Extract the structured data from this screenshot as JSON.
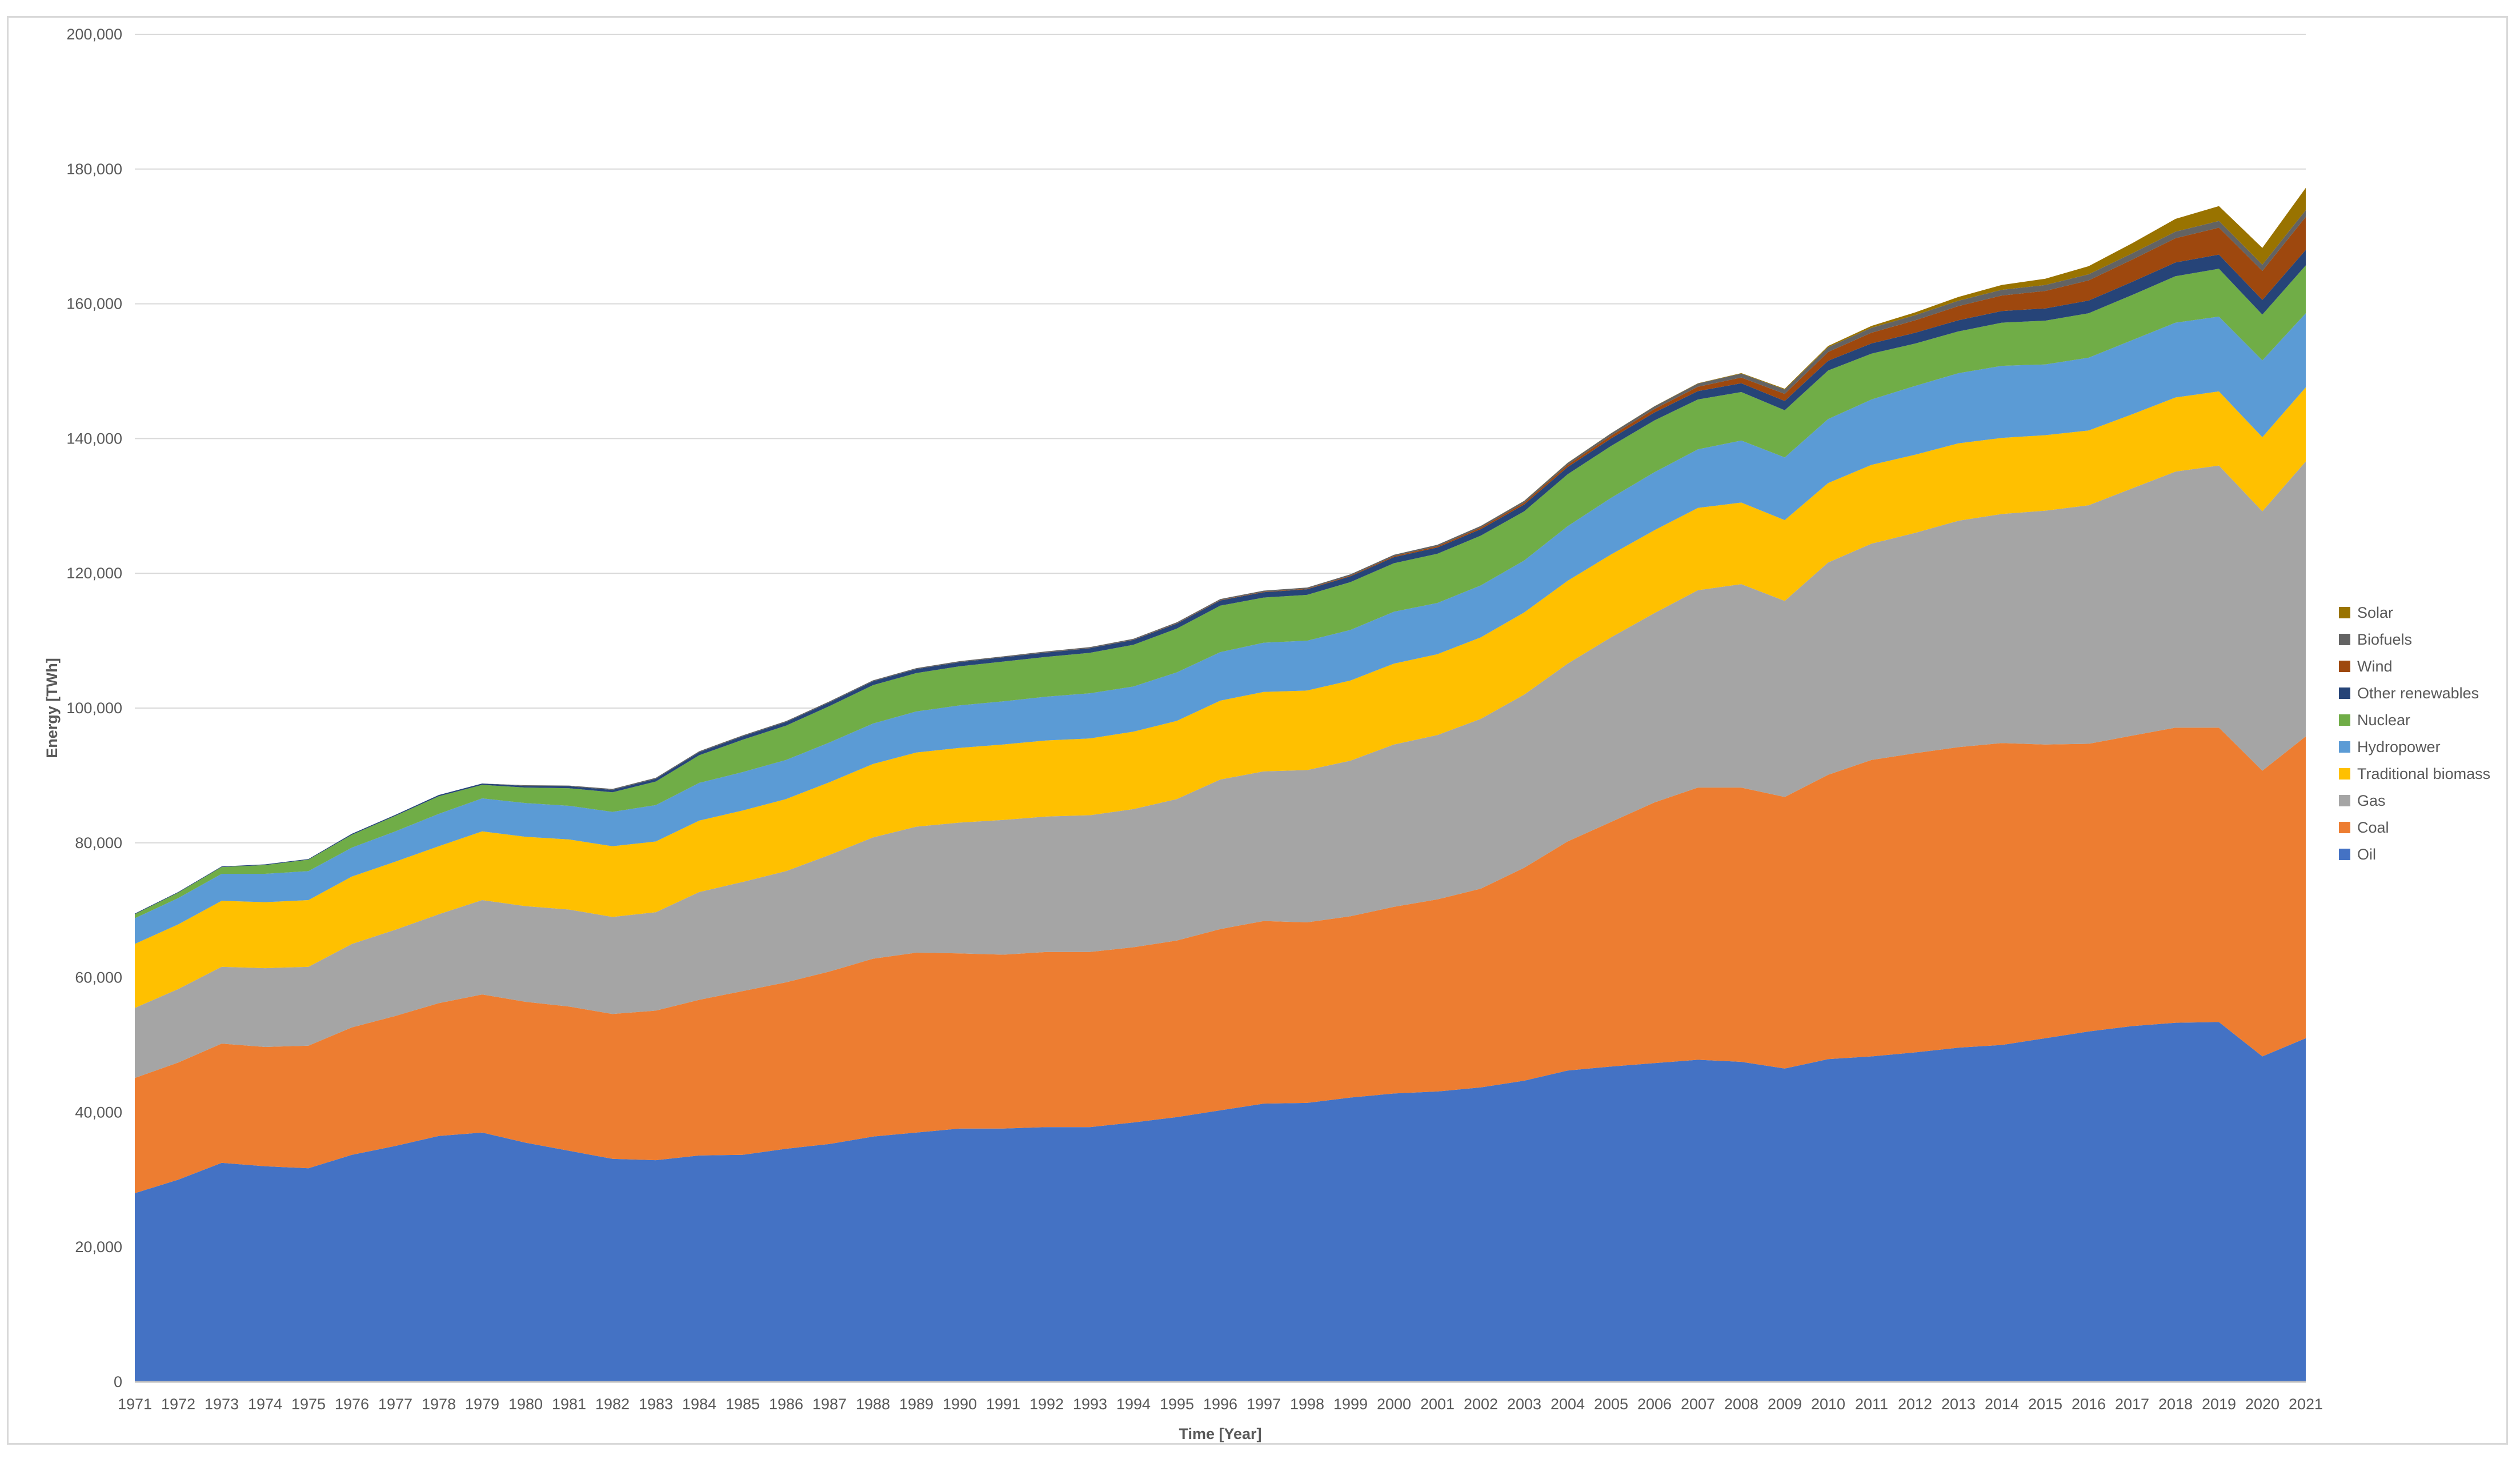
{
  "chart_data": {
    "type": "area",
    "stacked": true,
    "xlabel": "Time [Year]",
    "ylabel": "Energy [TWh]",
    "ylim": [
      0,
      200000
    ],
    "ytick_step": 20000,
    "y_tick_labels": [
      "0",
      "20,000",
      "40,000",
      "60,000",
      "80,000",
      "100,000",
      "120,000",
      "140,000",
      "160,000",
      "180,000",
      "200,000"
    ],
    "grid": "horizontal",
    "legend_position": "right",
    "x": [
      1971,
      1972,
      1973,
      1974,
      1975,
      1976,
      1977,
      1978,
      1979,
      1980,
      1981,
      1982,
      1983,
      1984,
      1985,
      1986,
      1987,
      1988,
      1989,
      1990,
      1991,
      1992,
      1993,
      1994,
      1995,
      1996,
      1997,
      1998,
      1999,
      2000,
      2001,
      2002,
      2003,
      2004,
      2005,
      2006,
      2007,
      2008,
      2009,
      2010,
      2011,
      2012,
      2013,
      2014,
      2015,
      2016,
      2017,
      2018,
      2019,
      2020,
      2021
    ],
    "x_tick_labels": [
      "1971",
      "1972",
      "1973",
      "1974",
      "1975",
      "1976",
      "1977",
      "1978",
      "1979",
      "1980",
      "1981",
      "1982",
      "1983",
      "1984",
      "1985",
      "1986",
      "1987",
      "1988",
      "1989",
      "1990",
      "1991",
      "1992",
      "1993",
      "1994",
      "1995",
      "1996",
      "1997",
      "1998",
      "1999",
      "2000",
      "2001",
      "2002",
      "2003",
      "2004",
      "2005",
      "2006",
      "2007",
      "2008",
      "2009",
      "2010",
      "2011",
      "2012",
      "2013",
      "2014",
      "2015",
      "2016",
      "2017",
      "2018",
      "2019",
      "2020",
      "2021"
    ],
    "series": [
      {
        "name": "Oil",
        "color": "#4472c4",
        "values": [
          28000,
          30000,
          32500,
          32000,
          31700,
          33700,
          35000,
          36500,
          37000,
          35500,
          34300,
          33100,
          32900,
          33600,
          33700,
          34600,
          35300,
          36400,
          37000,
          37600,
          37600,
          37800,
          37800,
          38500,
          39300,
          40300,
          41300,
          41400,
          42200,
          42800,
          43100,
          43700,
          44700,
          46200,
          46800,
          47300,
          47800,
          47500,
          46500,
          47900,
          48300,
          48900,
          49600,
          50000,
          51000,
          52000,
          52800,
          53300,
          53400,
          48300,
          51000
        ]
      },
      {
        "name": "Coal",
        "color": "#ed7d31",
        "values": [
          17100,
          17400,
          17700,
          17700,
          18200,
          18900,
          19300,
          19700,
          20500,
          20900,
          21400,
          21500,
          22200,
          23100,
          24300,
          24700,
          25600,
          26400,
          26700,
          26000,
          25800,
          26000,
          26000,
          26000,
          26200,
          26900,
          27100,
          26800,
          26900,
          27700,
          28500,
          29500,
          31600,
          34000,
          36300,
          38700,
          40400,
          40700,
          40300,
          42200,
          44000,
          44400,
          44600,
          44800,
          43600,
          42700,
          43100,
          43800,
          43700,
          42400,
          44800
        ]
      },
      {
        "name": "Gas",
        "color": "#a5a5a5",
        "values": [
          10400,
          10900,
          11400,
          11700,
          11700,
          12400,
          12800,
          13200,
          14000,
          14200,
          14400,
          14400,
          14600,
          16000,
          16200,
          16500,
          17300,
          18000,
          18700,
          19400,
          20000,
          20100,
          20300,
          20500,
          21000,
          22200,
          22200,
          22600,
          23100,
          24100,
          24400,
          25200,
          25700,
          26400,
          27400,
          28100,
          29300,
          30200,
          29100,
          31500,
          32100,
          32700,
          33600,
          34000,
          34700,
          35400,
          36700,
          38000,
          38900,
          38500,
          40800
        ]
      },
      {
        "name": "Traditional biomass",
        "color": "#ffc000",
        "values": [
          9500,
          9600,
          9800,
          9800,
          9900,
          10000,
          10100,
          10100,
          10200,
          10300,
          10400,
          10500,
          10500,
          10600,
          10600,
          10700,
          10800,
          10900,
          11000,
          11100,
          11200,
          11300,
          11400,
          11500,
          11600,
          11700,
          11800,
          11800,
          11900,
          12000,
          12000,
          12100,
          12200,
          12300,
          12300,
          12300,
          12200,
          12100,
          12000,
          11800,
          11700,
          11600,
          11500,
          11300,
          11200,
          11100,
          11000,
          11000,
          11000,
          11000,
          11000
        ]
      },
      {
        "name": "Hydropower",
        "color": "#5b9bd5",
        "values": [
          3800,
          3900,
          4000,
          4200,
          4300,
          4300,
          4500,
          4800,
          4900,
          5000,
          5000,
          5100,
          5400,
          5600,
          5700,
          5800,
          5900,
          6000,
          6100,
          6300,
          6400,
          6500,
          6700,
          6700,
          7200,
          7200,
          7300,
          7400,
          7500,
          7700,
          7600,
          7700,
          7700,
          8100,
          8400,
          8600,
          8700,
          9200,
          9300,
          9500,
          9700,
          10200,
          10400,
          10700,
          10500,
          10800,
          11000,
          11100,
          11100,
          11400,
          11000
        ]
      },
      {
        "name": "Nuclear",
        "color": "#70ad47",
        "values": [
          600,
          800,
          1000,
          1300,
          1700,
          1900,
          2300,
          2600,
          2000,
          2300,
          2600,
          2900,
          3500,
          4100,
          4800,
          5100,
          5400,
          5700,
          5700,
          5800,
          5900,
          5900,
          6000,
          6200,
          6500,
          6900,
          6700,
          6800,
          7100,
          7200,
          7300,
          7400,
          7300,
          7700,
          7700,
          7700,
          7400,
          7200,
          7000,
          7200,
          6800,
          6300,
          6200,
          6400,
          6500,
          6600,
          6700,
          6900,
          7100,
          6800,
          7100
        ]
      },
      {
        "name": "Other renewables",
        "color": "#264478",
        "values": [
          100,
          100,
          100,
          100,
          100,
          150,
          150,
          200,
          200,
          250,
          300,
          350,
          400,
          450,
          500,
          520,
          540,
          560,
          580,
          600,
          620,
          650,
          680,
          710,
          740,
          770,
          800,
          830,
          860,
          900,
          930,
          960,
          1000,
          1060,
          1120,
          1180,
          1240,
          1310,
          1380,
          1450,
          1520,
          1590,
          1660,
          1730,
          1810,
          1880,
          1950,
          2030,
          2100,
          2180,
          2300
        ]
      },
      {
        "name": "Wind",
        "color": "#9e480e",
        "values": [
          0,
          0,
          0,
          0,
          0,
          0,
          0,
          0,
          0,
          0,
          0,
          0,
          0,
          0,
          0,
          0,
          0,
          0,
          0,
          10,
          10,
          20,
          20,
          30,
          40,
          50,
          60,
          80,
          110,
          150,
          190,
          230,
          280,
          330,
          400,
          500,
          650,
          850,
          1050,
          1300,
          1600,
          1850,
          2100,
          2300,
          2600,
          3000,
          3300,
          3600,
          4000,
          4300,
          4900
        ]
      },
      {
        "name": "Biofuels",
        "color": "#636363",
        "values": [
          0,
          0,
          0,
          0,
          0,
          0,
          0,
          0,
          0,
          100,
          100,
          150,
          150,
          150,
          150,
          150,
          150,
          150,
          150,
          150,
          150,
          150,
          150,
          150,
          150,
          160,
          170,
          180,
          190,
          200,
          220,
          240,
          270,
          300,
          350,
          400,
          480,
          580,
          650,
          700,
          720,
          760,
          800,
          850,
          880,
          900,
          930,
          970,
          1000,
          920,
          1000
        ]
      },
      {
        "name": "Solar",
        "color": "#997300",
        "values": [
          0,
          0,
          0,
          0,
          0,
          0,
          0,
          0,
          0,
          0,
          0,
          0,
          0,
          0,
          0,
          0,
          0,
          0,
          0,
          0,
          0,
          0,
          0,
          0,
          0,
          0,
          0,
          0,
          0,
          0,
          0,
          0,
          10,
          10,
          20,
          30,
          40,
          70,
          120,
          190,
          290,
          420,
          560,
          720,
          930,
          1200,
          1500,
          1900,
          2200,
          2500,
          3300
        ]
      }
    ]
  }
}
